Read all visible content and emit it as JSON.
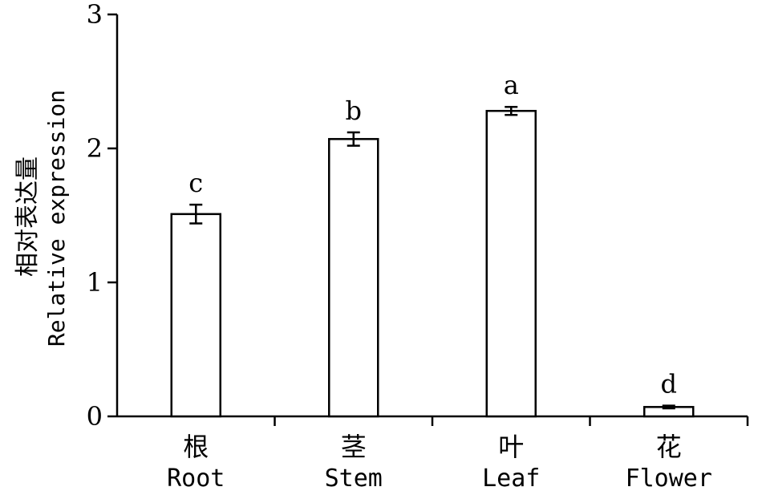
{
  "chart_data": {
    "type": "bar",
    "ylabel_cn": "相对表达量",
    "ylabel": "Relative expression",
    "ylim": [
      0,
      3
    ],
    "yticks": [
      "0",
      "1",
      "2",
      "3"
    ],
    "grid": false,
    "categories": [
      {
        "cn": "根",
        "en": "Root"
      },
      {
        "cn": "茎",
        "en": "Stem"
      },
      {
        "cn": "叶",
        "en": "Leaf"
      },
      {
        "cn": "花",
        "en": "Flower"
      }
    ],
    "values": [
      1.51,
      2.07,
      2.28,
      0.07
    ],
    "errors": [
      0.07,
      0.05,
      0.03,
      0.01
    ],
    "significance": [
      "c",
      "b",
      "a",
      "d"
    ]
  }
}
